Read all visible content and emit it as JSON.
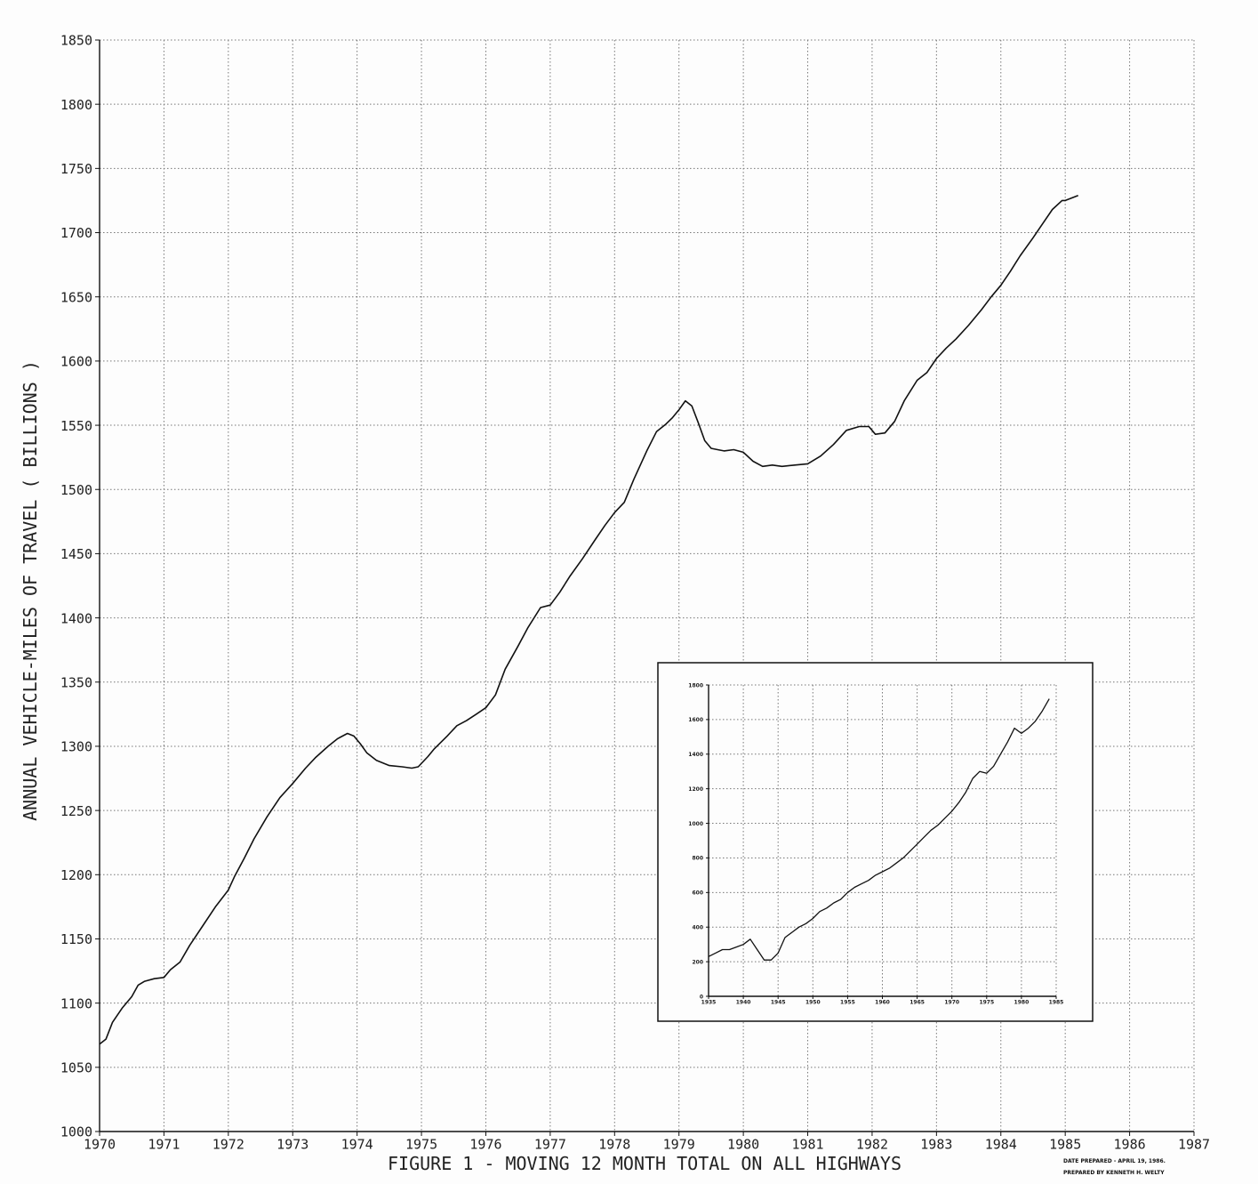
{
  "chart_data": [
    {
      "type": "line",
      "title": "FIGURE 1 - MOVING 12 MONTH TOTAL ON ALL HIGHWAYS",
      "ylabel": "ANNUAL VEHICLE-MILES OF TRAVEL ( BILLIONS )",
      "xlabel": "",
      "xlim": [
        1970,
        1987
      ],
      "ylim": [
        1000,
        1850
      ],
      "x_ticks": [
        "1970",
        "1971",
        "1972",
        "1973",
        "1974",
        "1975",
        "1976",
        "1977",
        "1978",
        "1979",
        "1980",
        "1981",
        "1982",
        "1983",
        "1984",
        "1985",
        "1986",
        "1987"
      ],
      "y_ticks": [
        "1000",
        "1050",
        "1100",
        "1150",
        "1200",
        "1250",
        "1300",
        "1350",
        "1400",
        "1450",
        "1500",
        "1550",
        "1600",
        "1650",
        "1700",
        "1750",
        "1800",
        "1850"
      ],
      "grid": true,
      "series": [
        {
          "color": "#111111",
          "x": [
            1970.0,
            1970.1,
            1970.2,
            1970.35,
            1970.5,
            1970.6,
            1970.7,
            1970.85,
            1971.0,
            1971.1,
            1971.25,
            1971.4,
            1971.6,
            1971.8,
            1972.0,
            1972.1,
            1972.25,
            1972.4,
            1972.6,
            1972.8,
            1973.0,
            1973.2,
            1973.35,
            1973.55,
            1973.7,
            1973.85,
            1973.95,
            1974.05,
            1974.15,
            1974.3,
            1974.5,
            1974.7,
            1974.85,
            1974.95,
            1975.1,
            1975.2,
            1975.4,
            1975.55,
            1975.7,
            1975.85,
            1976.0,
            1976.15,
            1976.3,
            1976.5,
            1976.65,
            1976.85,
            1977.0,
            1977.15,
            1977.3,
            1977.5,
            1977.7,
            1977.85,
            1978.0,
            1978.15,
            1978.3,
            1978.5,
            1978.65,
            1978.8,
            1978.9,
            1979.0,
            1979.1,
            1979.2,
            1979.3,
            1979.4,
            1979.5,
            1979.6,
            1979.7,
            1979.85,
            1980.0,
            1980.15,
            1980.3,
            1980.45,
            1980.6,
            1980.8,
            1981.0,
            1981.2,
            1981.4,
            1981.6,
            1981.8,
            1981.95,
            1982.05,
            1982.2,
            1982.35,
            1982.5,
            1982.7,
            1982.85,
            1983.0,
            1983.15,
            1983.3,
            1983.5,
            1983.7,
            1983.85,
            1984.0,
            1984.15,
            1984.3,
            1984.5,
            1984.65,
            1984.8,
            1984.95,
            1985.0,
            1985.2
          ],
          "y": [
            1068,
            1072,
            1085,
            1096,
            1105,
            1114,
            1117,
            1119,
            1120,
            1126,
            1132,
            1145,
            1160,
            1175,
            1188,
            1199,
            1213,
            1228,
            1245,
            1260,
            1271,
            1283,
            1291,
            1300,
            1306,
            1310,
            1308,
            1302,
            1295,
            1289,
            1285,
            1284,
            1283,
            1284,
            1292,
            1298,
            1308,
            1316,
            1320,
            1325,
            1330,
            1340,
            1360,
            1378,
            1392,
            1408,
            1410,
            1420,
            1432,
            1446,
            1461,
            1472,
            1482,
            1490,
            1508,
            1530,
            1545,
            1551,
            1556,
            1562,
            1569,
            1565,
            1552,
            1538,
            1532,
            1531,
            1530,
            1531,
            1529,
            1522,
            1518,
            1519,
            1518,
            1519,
            1520,
            1526,
            1535,
            1546,
            1549,
            1549,
            1543,
            1544,
            1553,
            1569,
            1585,
            1591,
            1602,
            1610,
            1617,
            1628,
            1640,
            1650,
            1659,
            1670,
            1682,
            1696,
            1707,
            1718,
            1725,
            1725,
            1729
          ]
        }
      ]
    },
    {
      "type": "line",
      "title": "",
      "xlim": [
        1935,
        1985
      ],
      "ylim": [
        0,
        1800
      ],
      "x_ticks": [
        "1935",
        "1940",
        "1945",
        "1950",
        "1955",
        "1960",
        "1965",
        "1970",
        "1975",
        "1980",
        "1985"
      ],
      "y_ticks": [
        "0",
        "200",
        "400",
        "600",
        "800",
        "1000",
        "1200",
        "1400",
        "1600",
        "1800"
      ],
      "grid": true,
      "series": [
        {
          "color": "#111111",
          "x": [
            1935,
            1936,
            1937,
            1938,
            1939,
            1940,
            1941,
            1942,
            1943,
            1944,
            1945,
            1946,
            1947,
            1948,
            1949,
            1950,
            1951,
            1952,
            1953,
            1954,
            1955,
            1956,
            1957,
            1958,
            1959,
            1960,
            1961,
            1962,
            1963,
            1964,
            1965,
            1966,
            1967,
            1968,
            1969,
            1970,
            1971,
            1972,
            1973,
            1974,
            1975,
            1976,
            1977,
            1978,
            1979,
            1980,
            1981,
            1982,
            1983,
            1984
          ],
          "y": [
            230,
            250,
            270,
            270,
            285,
            300,
            330,
            270,
            210,
            210,
            250,
            340,
            370,
            400,
            420,
            450,
            490,
            510,
            540,
            560,
            600,
            630,
            650,
            670,
            700,
            720,
            740,
            770,
            800,
            840,
            880,
            920,
            960,
            990,
            1030,
            1070,
            1120,
            1180,
            1260,
            1300,
            1290,
            1330,
            1400,
            1470,
            1550,
            1520,
            1550,
            1590,
            1650,
            1720
          ]
        }
      ]
    }
  ],
  "credits": {
    "line1": "DATE PREPARED - APRIL 19, 1986.",
    "line2": "PREPARED BY KENNETH H. WELTY"
  }
}
